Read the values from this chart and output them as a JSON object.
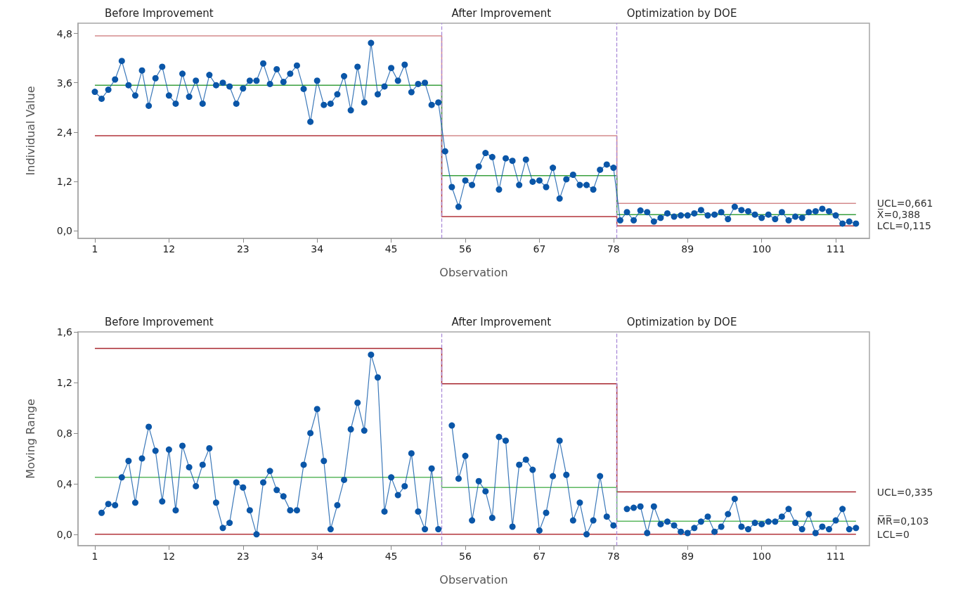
{
  "chart_data": [
    {
      "type": "line",
      "xlabel": "Observation",
      "ylabel": "Individual Value",
      "xlim": [
        -1.5,
        116
      ],
      "xticks": [
        1,
        12,
        23,
        34,
        45,
        56,
        67,
        78,
        89,
        100,
        111
      ],
      "ylim": [
        -0.19,
        5.05
      ],
      "yticks": [
        {
          "value": 0,
          "label": "0,0"
        },
        {
          "value": 1.2,
          "label": "1,2"
        },
        {
          "value": 2.4,
          "label": "2,4"
        },
        {
          "value": 3.6,
          "label": "3,6"
        },
        {
          "value": 4.8,
          "label": "4,8"
        }
      ],
      "marker": "circle",
      "annotations": [
        "Before Improvement",
        "After Improvement",
        "Optimization by DOE"
      ],
      "ref_lines": [
        {
          "axis": "x",
          "value": 52.5,
          "color": "#a98ad8",
          "line_style": "dashed"
        },
        {
          "axis": "x",
          "value": 78.5,
          "color": "#a98ad8",
          "line_style": "dashed"
        }
      ],
      "x": [
        1,
        2,
        3,
        4,
        5,
        6,
        7,
        8,
        9,
        10,
        11,
        12,
        13,
        14,
        15,
        16,
        17,
        18,
        19,
        20,
        21,
        22,
        23,
        24,
        25,
        26,
        27,
        28,
        29,
        30,
        31,
        32,
        33,
        34,
        35,
        36,
        37,
        38,
        39,
        40,
        41,
        42,
        43,
        44,
        45,
        46,
        47,
        48,
        49,
        50,
        51,
        52,
        53,
        54,
        55,
        56,
        57,
        58,
        59,
        60,
        61,
        62,
        63,
        64,
        65,
        66,
        67,
        68,
        69,
        70,
        71,
        72,
        73,
        74,
        75,
        76,
        77,
        78,
        79,
        80,
        81,
        82,
        83,
        84,
        85,
        86,
        87,
        88,
        89,
        90,
        91,
        92,
        93,
        94,
        95,
        96,
        97,
        98,
        99,
        100,
        101,
        102,
        103,
        104,
        105,
        106,
        107,
        108,
        109,
        110,
        111,
        112,
        113,
        114
      ],
      "series": [
        {
          "color": "#0a56a8",
          "values": [
            3.38,
            3.21,
            3.43,
            3.68,
            4.13,
            3.54,
            3.29,
            3.9,
            3.04,
            3.71,
            3.99,
            3.29,
            3.09,
            3.82,
            3.26,
            3.65,
            3.09,
            3.79,
            3.54,
            3.6,
            3.51,
            3.09,
            3.46,
            3.65,
            3.65,
            4.07,
            3.57,
            3.93,
            3.62,
            3.82,
            4.02,
            3.45,
            2.65,
            3.65,
            3.06,
            3.09,
            3.32,
            3.76,
            2.93,
            3.99,
            3.12,
            4.57,
            3.32,
            3.51,
            3.96,
            3.65,
            4.04,
            3.37,
            3.57,
            3.6,
            3.06,
            3.12,
            1.93,
            1.06,
            0.58,
            1.22,
            1.11,
            1.56,
            1.89,
            1.79,
            1.0,
            1.76,
            1.7,
            1.11,
            1.73,
            1.19,
            1.22,
            1.06,
            1.53,
            0.78,
            1.25,
            1.36,
            1.11,
            1.11,
            1.0,
            1.48,
            1.61,
            1.53,
            0.25,
            0.45,
            0.25,
            0.49,
            0.45,
            0.22,
            0.31,
            0.42,
            0.34,
            0.37,
            0.37,
            0.42,
            0.5,
            0.37,
            0.39,
            0.45,
            0.28,
            0.58,
            0.5,
            0.47,
            0.39,
            0.31,
            0.39,
            0.28,
            0.45,
            0.25,
            0.34,
            0.31,
            0.45,
            0.47,
            0.53,
            0.47,
            0.37,
            0.17,
            0.22,
            0.17
          ]
        },
        {
          "name": "UCL=0,661",
          "color": "#d48a8c",
          "marker": "none",
          "x": [
            1,
            52.5,
            52.5,
            78.5,
            78.5,
            114
          ],
          "values": [
            4.74,
            4.74,
            2.31,
            2.31,
            0.661,
            0.661
          ]
        },
        {
          "name": "X̅=0,388",
          "color": "#3aa03f",
          "marker": "none",
          "x": [
            1,
            52.5,
            52.5,
            78.5,
            78.5,
            114
          ],
          "values": [
            3.54,
            3.54,
            1.34,
            1.34,
            0.388,
            0.388
          ]
        },
        {
          "name": "LCL=0,115",
          "color": "#b3353b",
          "marker": "none",
          "x": [
            1,
            52.5,
            52.5,
            78.5,
            78.5,
            114
          ],
          "values": [
            2.31,
            2.31,
            0.34,
            0.34,
            0.115,
            0.115
          ]
        }
      ]
    },
    {
      "type": "line",
      "xlabel": "Observation",
      "ylabel": "Moving Range",
      "xlim": [
        -1.5,
        116
      ],
      "xticks": [
        1,
        12,
        23,
        34,
        45,
        56,
        67,
        78,
        89,
        100,
        111
      ],
      "ylim": [
        -0.09,
        1.6
      ],
      "yticks": [
        {
          "value": 0,
          "label": "0,0"
        },
        {
          "value": 0.4,
          "label": "0,4"
        },
        {
          "value": 0.8,
          "label": "0,8"
        },
        {
          "value": 1.2,
          "label": "1,2"
        },
        {
          "value": 1.6,
          "label": "1,6"
        }
      ],
      "marker": "circle",
      "annotations": [
        "Before Improvement",
        "After Improvement",
        "Optimization by DOE"
      ],
      "ref_lines": [
        {
          "axis": "x",
          "value": 52.5,
          "color": "#a98ad8",
          "line_style": "dashed"
        },
        {
          "axis": "x",
          "value": 78.5,
          "color": "#a98ad8",
          "line_style": "dashed"
        }
      ],
      "x": [
        2,
        3,
        4,
        5,
        6,
        7,
        8,
        9,
        10,
        11,
        12,
        13,
        14,
        15,
        16,
        17,
        18,
        19,
        20,
        21,
        22,
        23,
        24,
        25,
        26,
        27,
        28,
        29,
        30,
        31,
        32,
        33,
        34,
        35,
        36,
        37,
        38,
        39,
        40,
        41,
        42,
        43,
        44,
        45,
        46,
        47,
        48,
        49,
        50,
        51,
        52,
        53,
        54,
        55,
        56,
        57,
        58,
        59,
        60,
        61,
        62,
        63,
        64,
        65,
        66,
        67,
        68,
        69,
        70,
        71,
        72,
        73,
        74,
        75,
        76,
        77,
        78,
        79,
        80,
        81,
        82,
        83,
        84,
        85,
        86,
        87,
        88,
        89,
        90,
        91,
        92,
        93,
        94,
        95,
        96,
        97,
        98,
        99,
        100,
        101,
        102,
        103,
        104,
        105,
        106,
        107,
        108,
        109,
        110,
        111,
        112,
        113,
        114
      ],
      "series": [
        {
          "color": "#0a56a8",
          "values": [
            0.17,
            0.24,
            0.23,
            0.45,
            0.58,
            0.25,
            0.6,
            0.85,
            0.66,
            0.26,
            0.67,
            0.19,
            0.7,
            0.53,
            0.38,
            0.55,
            0.68,
            0.25,
            0.05,
            0.09,
            0.41,
            0.37,
            0.19,
            0.0,
            0.41,
            0.5,
            0.35,
            0.3,
            0.19,
            0.19,
            0.55,
            0.8,
            0.99,
            0.58,
            0.04,
            0.23,
            0.43,
            0.83,
            1.04,
            0.82,
            1.42,
            1.24,
            0.18,
            0.45,
            0.31,
            0.38,
            0.64,
            0.18,
            0.04,
            0.52,
            0.04,
            null,
            0.86,
            0.44,
            0.62,
            0.11,
            0.42,
            0.34,
            0.13,
            0.77,
            0.74,
            0.06,
            0.55,
            0.59,
            0.51,
            0.03,
            0.17,
            0.46,
            0.74,
            0.47,
            0.11,
            0.25,
            0.0,
            0.11,
            0.46,
            0.14,
            0.07,
            null,
            0.2,
            0.21,
            0.22,
            0.01,
            0.22,
            0.08,
            0.1,
            0.07,
            0.02,
            0.01,
            0.05,
            0.1,
            0.14,
            0.02,
            0.06,
            0.16,
            0.28,
            0.06,
            0.04,
            0.09,
            0.08,
            0.1,
            0.1,
            0.14,
            0.2,
            0.09,
            0.04,
            0.16,
            0.01,
            0.06,
            0.04,
            0.11,
            0.2,
            0.04,
            0.05
          ]
        },
        {
          "name": "UCL=0,335",
          "color": "#a8262e",
          "marker": "none",
          "x": [
            1,
            52.5,
            52.5,
            78.5,
            78.5,
            114
          ],
          "values": [
            1.47,
            1.47,
            1.19,
            1.19,
            0.335,
            0.335
          ]
        },
        {
          "name": "M̅R̅=0,103",
          "color": "#5cb860",
          "marker": "none",
          "x": [
            1,
            52.5,
            52.5,
            78.5,
            78.5,
            114
          ],
          "values": [
            0.45,
            0.45,
            0.37,
            0.37,
            0.103,
            0.103
          ]
        },
        {
          "name": "LCL=0",
          "color": "#b3353b",
          "marker": "none",
          "x": [
            1,
            52.5,
            52.5,
            78.5,
            78.5,
            114
          ],
          "values": [
            0,
            0,
            0,
            0,
            0,
            0
          ]
        }
      ]
    }
  ]
}
